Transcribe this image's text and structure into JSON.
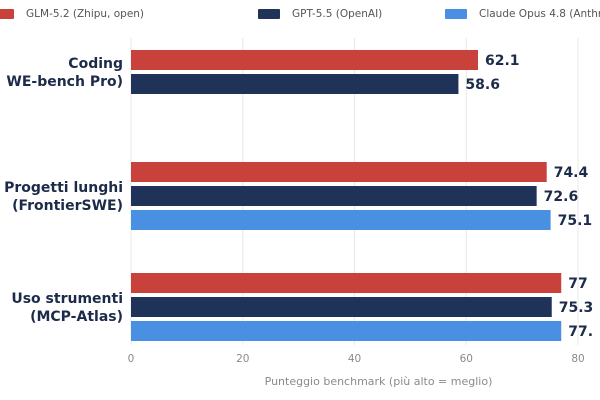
{
  "colors": {
    "glm": "#c8413a",
    "gpt": "#1f3358",
    "claude": "#4a90e2",
    "grid": "#e8e8e8",
    "text_dark": "#1c2b4a",
    "text_muted": "#8a8a8a"
  },
  "legend": [
    {
      "label": "GLM-5.2 (Zhipu, open)",
      "color": "#c8413a"
    },
    {
      "label": "GPT-5.5 (OpenAI)",
      "color": "#1f3358"
    },
    {
      "label": "Claude Opus 4.8 (Anthr",
      "color": "#4a90e2"
    }
  ],
  "chart_data": {
    "type": "bar",
    "orientation": "horizontal",
    "categories": [
      [
        "Coding",
        "WE-bench Pro)"
      ],
      [
        "Progetti lunghi",
        "(FrontierSWE)"
      ],
      [
        "Uso strumenti",
        "(MCP-Atlas)"
      ]
    ],
    "series": [
      {
        "name": "GLM-5.2 (Zhipu, open)",
        "color": "#c8413a",
        "values": [
          62.1,
          74.4,
          77
        ]
      },
      {
        "name": "GPT-5.5 (OpenAI)",
        "color": "#1f3358",
        "values": [
          58.6,
          72.6,
          75.3
        ]
      },
      {
        "name": "Claude Opus 4.8 (Anthr",
        "color": "#4a90e2",
        "values": [
          null,
          75.1,
          77.0
        ]
      }
    ],
    "value_labels": [
      [
        "62.1",
        "74.4",
        "77"
      ],
      [
        "58.6",
        "72.6",
        "75.3"
      ],
      [
        "",
        "75.1",
        "77."
      ]
    ],
    "xticks": [
      0,
      20,
      40,
      60,
      80
    ],
    "xlim": [
      0,
      80
    ],
    "xlabel": "Punteggio benchmark (più alto = meglio)",
    "ylabel": "",
    "grid": true,
    "legend_position": "top"
  }
}
